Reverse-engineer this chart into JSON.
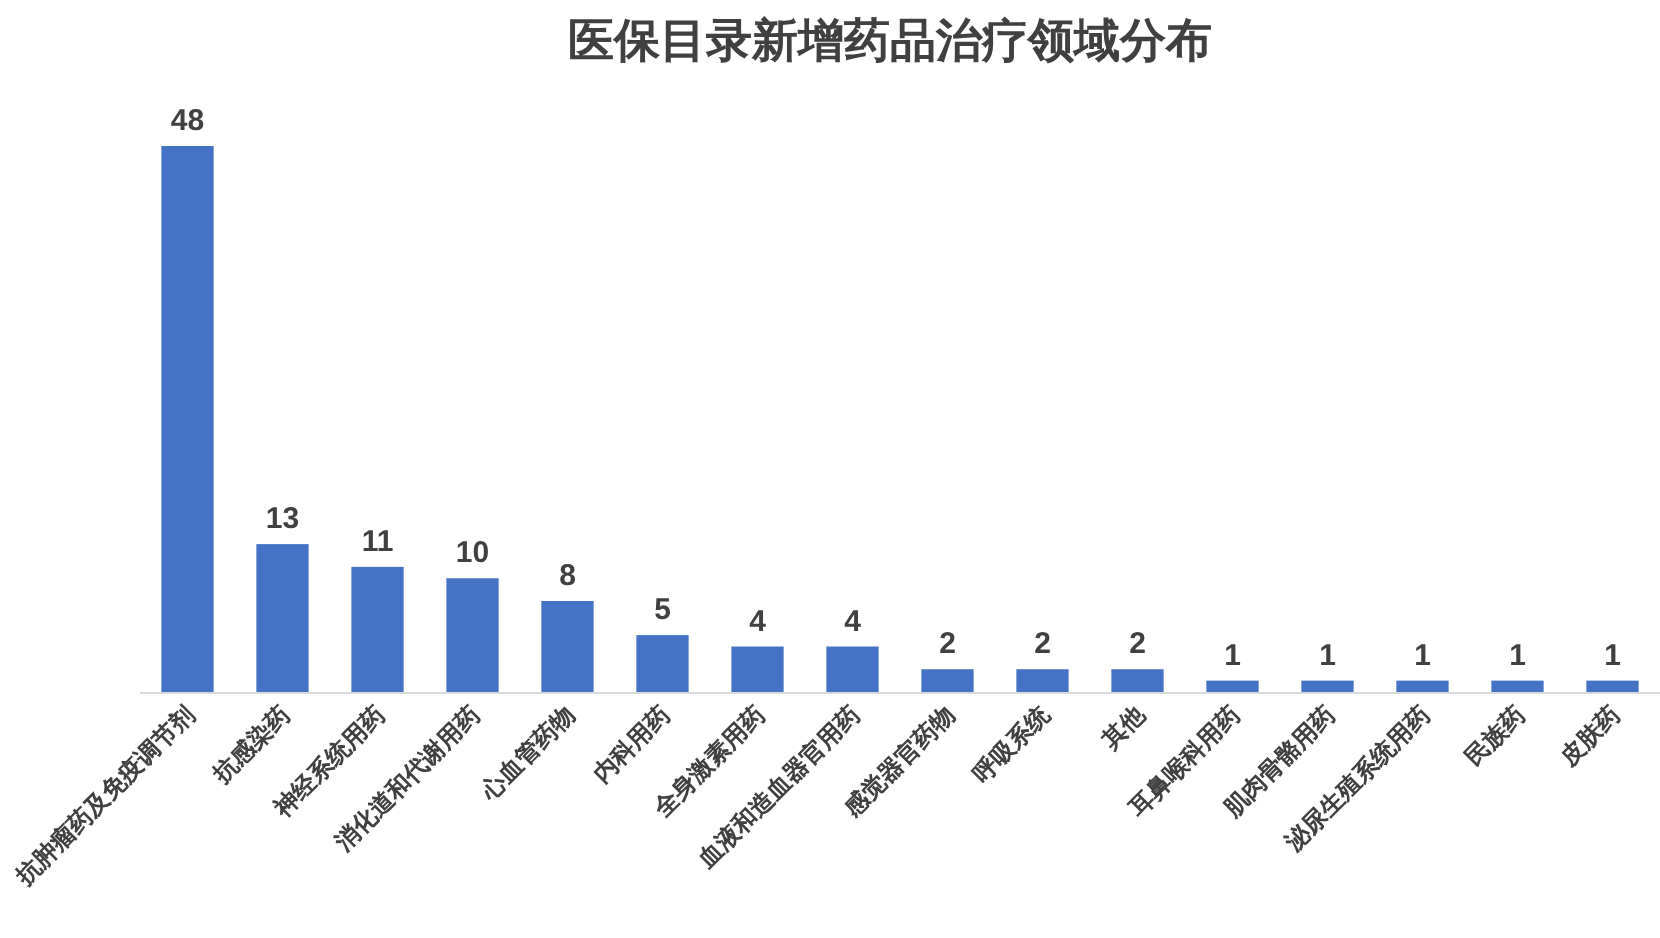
{
  "chart_data": {
    "type": "bar",
    "title": "医保目录新增药品治疗领域分布",
    "categories": [
      "抗肿瘤药及免疫调节剂",
      "抗感染药",
      "神经系统用药",
      "消化道和代谢用药",
      "心血管药物",
      "内科用药",
      "全身激素用药",
      "血液和造血器官用药",
      "感觉器官药物",
      "呼吸系统",
      "其他",
      "耳鼻喉科用药",
      "肌肉骨骼用药",
      "泌尿生殖系统用药",
      "民族药",
      "皮肤药"
    ],
    "values": [
      48,
      13,
      11,
      10,
      8,
      5,
      4,
      4,
      2,
      2,
      2,
      1,
      1,
      1,
      1,
      1
    ],
    "color": "#4472c4",
    "data_labels": true
  }
}
